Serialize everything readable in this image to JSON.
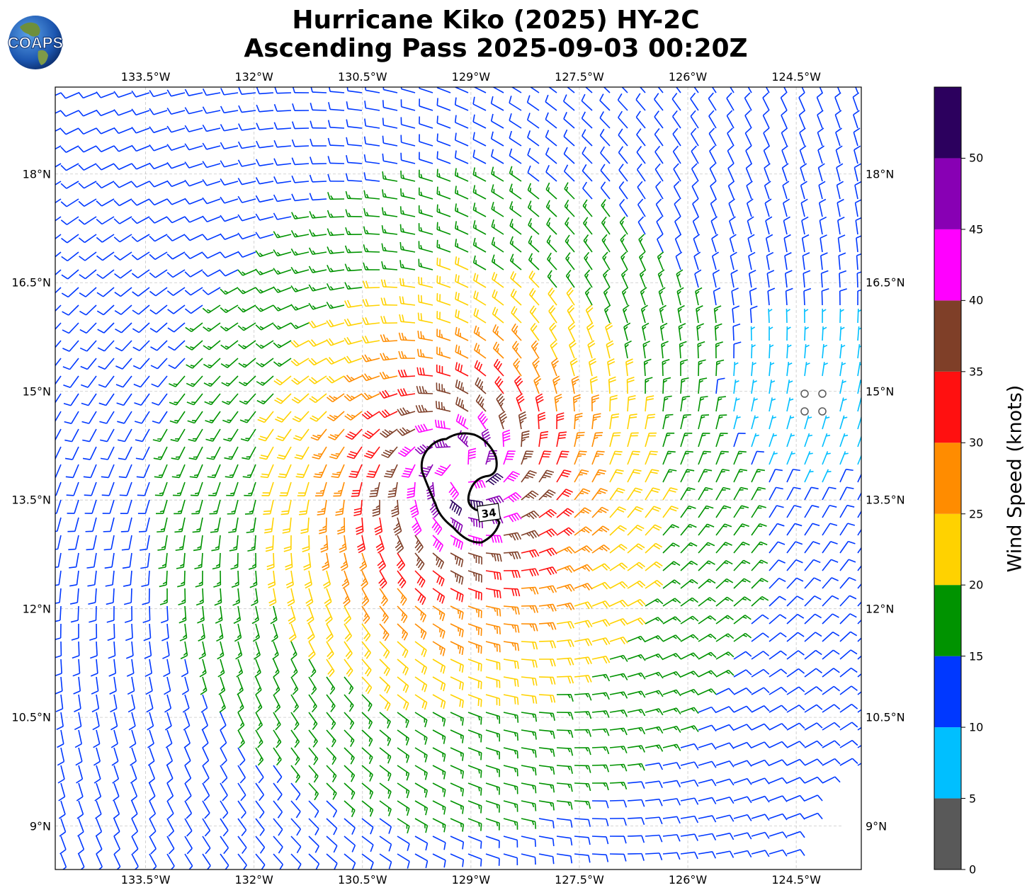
{
  "title": {
    "line1": "Hurricane Kiko (2025) HY-2C",
    "line2": "Ascending Pass 2025-09-03 00:20Z"
  },
  "logo": {
    "text": "COAPS"
  },
  "map": {
    "lon_range": [
      -134.75,
      -123.6
    ],
    "lat_range": [
      8.4,
      19.2
    ],
    "lon_ticks": [
      "133.5°W",
      "132°W",
      "130.5°W",
      "129°W",
      "127.5°W",
      "126°W",
      "124.5°W"
    ],
    "lon_tick_values": [
      -133.5,
      -132,
      -130.5,
      -129,
      -127.5,
      -126,
      -124.5
    ],
    "lat_ticks": [
      "18°N",
      "16.5°N",
      "15°N",
      "13.5°N",
      "12°N",
      "10.5°N",
      "9°N"
    ],
    "lat_tick_values": [
      18,
      16.5,
      15,
      13.5,
      12,
      10.5,
      9
    ],
    "gridlines": "dashed",
    "storm_center": {
      "lon": -129.15,
      "lat": 13.95
    },
    "swath_edge": "lower-right",
    "contour": {
      "label": "34"
    }
  },
  "colorbar": {
    "label": "Wind Speed (knots)",
    "ticks": [
      "0",
      "5",
      "10",
      "15",
      "20",
      "25",
      "30",
      "35",
      "40",
      "45",
      "50"
    ],
    "bins": [
      {
        "min": 0,
        "max": 5,
        "color": "#595959"
      },
      {
        "min": 5,
        "max": 10,
        "color": "#00bfff"
      },
      {
        "min": 10,
        "max": 15,
        "color": "#0038ff"
      },
      {
        "min": 15,
        "max": 20,
        "color": "#009300"
      },
      {
        "min": 20,
        "max": 25,
        "color": "#ffd200"
      },
      {
        "min": 25,
        "max": 30,
        "color": "#ff8c00"
      },
      {
        "min": 30,
        "max": 35,
        "color": "#ff1010"
      },
      {
        "min": 35,
        "max": 40,
        "color": "#7f3f28"
      },
      {
        "min": 40,
        "max": 45,
        "color": "#ff00ff"
      },
      {
        "min": 45,
        "max": 50,
        "color": "#8800b4"
      },
      {
        "min": 50,
        "max": 55,
        "color": "#2c005e"
      }
    ]
  }
}
